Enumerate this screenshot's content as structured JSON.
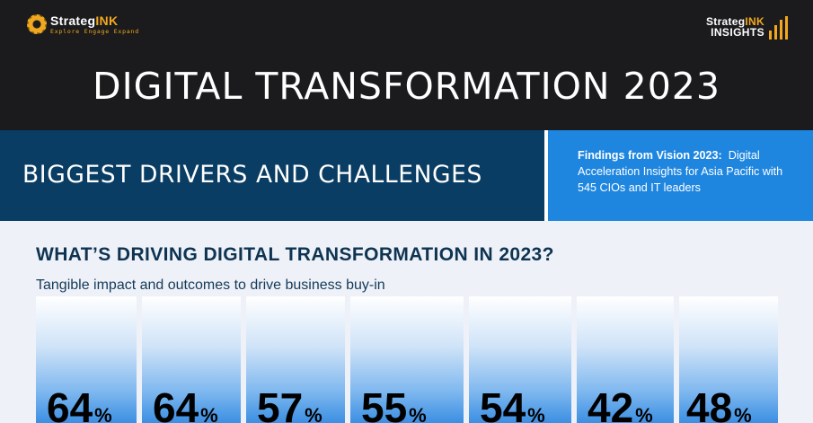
{
  "header": {
    "logo_left": {
      "name_a": "Strateg",
      "name_b": "INK",
      "tagline": "Explore Engage Expand"
    },
    "logo_right": {
      "name_a": "Strateg",
      "name_b": "INK",
      "sub": "INSIGHTS"
    },
    "title": "DIGITAL TRANSFORMATION 2023",
    "accent_color": "#f2a81e"
  },
  "banner": {
    "section_title": "BIGGEST DRIVERS AND CHALLENGES",
    "findings_bold": "Findings from Vision 2023:",
    "findings_text": "Digital Acceleration Insights for Asia Pacific with 545 CIOs and IT leaders",
    "colors": {
      "dark": "#0a3d63",
      "light": "#1f86e0"
    }
  },
  "content": {
    "question": "WHAT’S DRIVING DIGITAL TRANSFORMATION IN 2023?",
    "subtitle": "Tangible impact and outcomes to drive business buy-in",
    "stats": [
      {
        "value": "64",
        "unit": "%"
      },
      {
        "value": "64",
        "unit": "%"
      },
      {
        "value": "57",
        "unit": "%"
      },
      {
        "value": "55",
        "unit": "%"
      },
      {
        "value": "54",
        "unit": "%"
      },
      {
        "value": "42",
        "unit": "%"
      },
      {
        "value": "48",
        "unit": "%"
      }
    ]
  }
}
